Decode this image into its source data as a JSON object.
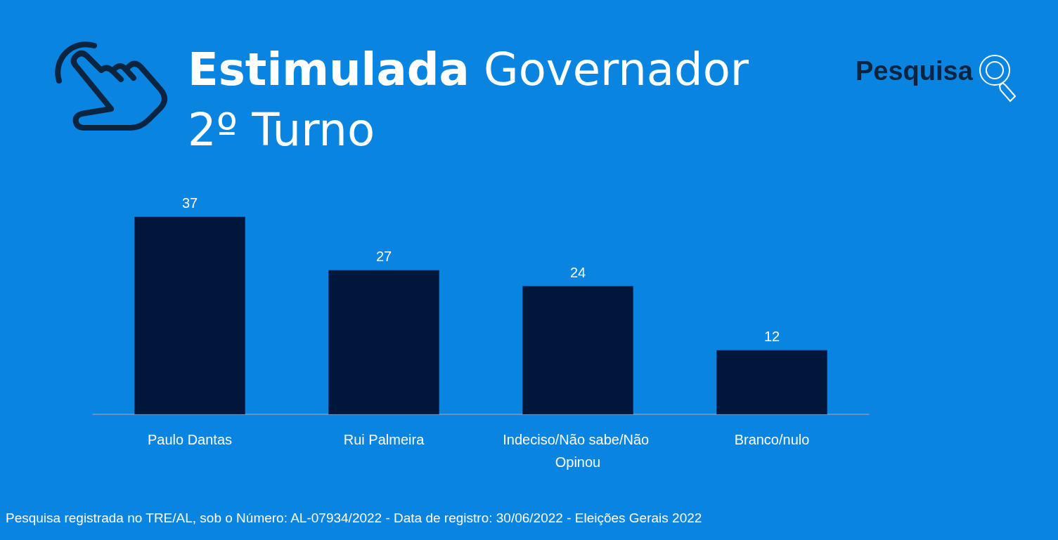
{
  "chart_data": {
    "type": "bar",
    "title": "Estimulada Governador",
    "subtitle": "2º Turno",
    "categories": [
      "Paulo Dantas",
      "Rui Palmeira",
      "Indeciso/Não sabe/Não Opinou",
      "Branco/nulo"
    ],
    "values": [
      37,
      27,
      24,
      12
    ],
    "color": "#00163b",
    "data_labels": true,
    "annotations": [
      "Pesquisa",
      "Pesquisa registrada no TRE/AL, sob o Número: AL-07934/2022 - Data de registro: 30/06/2022 - Eleições Gerais 2022"
    ]
  }
}
